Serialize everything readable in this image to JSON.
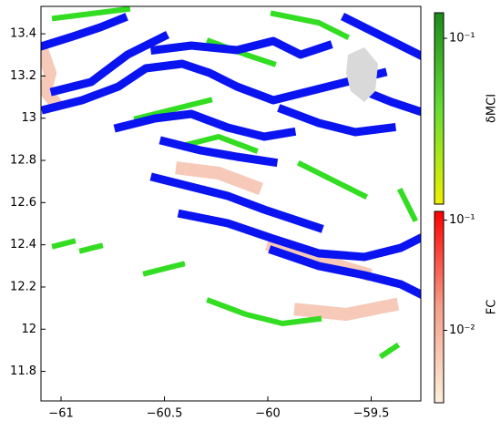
{
  "chart_data": {
    "type": "map",
    "xlim": [
      -61.097,
      -59.26
    ],
    "xticks": [
      {
        "value": -61,
        "label": "−61"
      },
      {
        "value": -60.5,
        "label": "−60.5"
      },
      {
        "value": -60,
        "label": "−60"
      },
      {
        "value": -59.5,
        "label": "−59.5"
      }
    ],
    "ylim": [
      11.66,
      13.53
    ],
    "yticks": [
      11.8,
      12,
      12.2,
      12.4,
      12.6,
      12.8,
      13,
      13.2,
      13.4
    ],
    "colorbars": [
      {
        "label": "δMCI",
        "log": true,
        "lim": [
          0.0072,
          0.15
        ],
        "colors": [
          "#f0f000",
          "#66dd33",
          "#1c8a1c"
        ],
        "ticks": [
          {
            "value": 0.1,
            "label": "10⁻¹"
          }
        ]
      },
      {
        "label": "FC",
        "log": true,
        "lim": [
          0.0022,
          0.12
        ],
        "colors": [
          "#fdf0dc",
          "#f5a08a",
          "#ff0000"
        ],
        "ticks": [
          {
            "value": 0.01,
            "label": "10⁻²"
          },
          {
            "value": 0.1,
            "label": "10⁻¹"
          }
        ]
      }
    ]
  }
}
